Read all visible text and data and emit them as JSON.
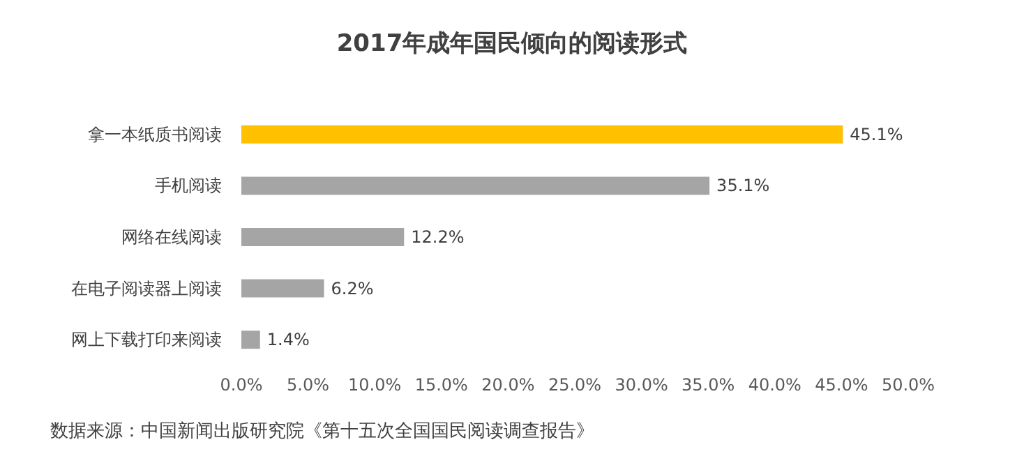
{
  "chart_data": {
    "type": "bar",
    "orientation": "horizontal",
    "title": "2017年成年国民倾向的阅读形式",
    "categories": [
      "拿一本纸质书阅读",
      "手机阅读",
      "网络在线阅读",
      "在电子阅读器上阅读",
      "网上下载打印来阅读"
    ],
    "values": [
      45.1,
      35.1,
      12.2,
      6.2,
      1.4
    ],
    "colors": [
      "#ffc000",
      "#a5a5a5",
      "#a5a5a5",
      "#a5a5a5",
      "#a5a5a5"
    ],
    "value_labels": [
      "45.1%",
      "35.1%",
      "12.2%",
      "6.2%",
      "1.4%"
    ],
    "xlim": [
      0,
      50
    ],
    "xticks": [
      {
        "value": 0,
        "label": "0.0%"
      },
      {
        "value": 5,
        "label": "5.0%"
      },
      {
        "value": 10,
        "label": "10.0%"
      },
      {
        "value": 15,
        "label": "15.0%"
      },
      {
        "value": 20,
        "label": "20.0%"
      },
      {
        "value": 25,
        "label": "25.0%"
      },
      {
        "value": 30,
        "label": "30.0%"
      },
      {
        "value": 35,
        "label": "35.0%"
      },
      {
        "value": 40,
        "label": "40.0%"
      },
      {
        "value": 45,
        "label": "45.0%"
      },
      {
        "value": 50,
        "label": "50.0%"
      }
    ],
    "grid": false,
    "annotations": [
      "数据来源：中国新闻出版研究院《第十五次全国国民阅读调查报告》"
    ]
  }
}
